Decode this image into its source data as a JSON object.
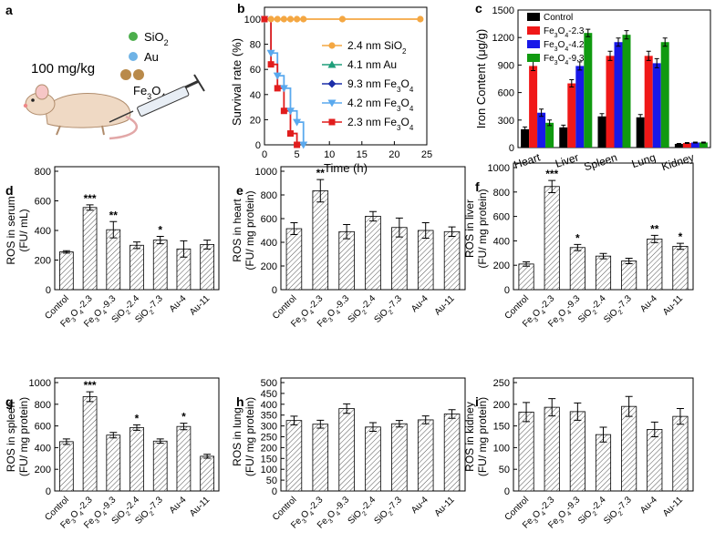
{
  "panels": {
    "a": {
      "letter": "a",
      "dose": "100 mg/kg",
      "legend": [
        {
          "label": "SiO",
          "sub": "2",
          "color": "#4cae4c"
        },
        {
          "label": "Au",
          "sub": "",
          "color": "#6fb3e6"
        },
        {
          "label": "Fe",
          "sub": "3",
          "label2": "O",
          "sub2": "4",
          "color": "#b98a4a"
        }
      ]
    }
  },
  "chart_data": [
    {
      "id": "b",
      "letter": "b",
      "type": "line",
      "xlabel": "Time (h)",
      "ylabel": "Survival rate (%)",
      "xlim": [
        0,
        25
      ],
      "ylim": [
        0,
        100
      ],
      "xticks": [
        0,
        5,
        10,
        15,
        20,
        25
      ],
      "yticks": [
        0,
        20,
        40,
        60,
        80,
        100
      ],
      "series": [
        {
          "name": "2.4 nm SiO2",
          "base": "2.4 nm SiO",
          "sub": "2",
          "color": "#f4a742",
          "marker": "circle",
          "x": [
            0,
            1,
            2,
            3,
            4,
            5,
            6,
            12,
            24
          ],
          "y": [
            100,
            100,
            100,
            100,
            100,
            100,
            100,
            100,
            100
          ]
        },
        {
          "name": "4.1 nm Au",
          "base": "4.1 nm Au",
          "color": "#1e9e7a",
          "marker": "triangle-up",
          "x": [],
          "y": []
        },
        {
          "name": "9.3 nm Fe3O4",
          "base": "9.3 nm Fe",
          "sub": "3",
          "base2": "O",
          "sub2": "4",
          "color": "#1c2ea8",
          "marker": "diamond",
          "x": [],
          "y": []
        },
        {
          "name": "4.2 nm Fe3O4",
          "base": "4.2 nm Fe",
          "sub": "3",
          "base2": "O",
          "sub2": "4",
          "color": "#5aa9ee",
          "marker": "triangle-down",
          "x": [
            0,
            1,
            2,
            3,
            4,
            5,
            6
          ],
          "y": [
            100,
            73,
            55,
            45,
            27,
            18,
            0
          ]
        },
        {
          "name": "2.3 nm Fe3O4",
          "base": "2.3 nm Fe",
          "sub": "3",
          "base2": "O",
          "sub2": "4",
          "color": "#e11d1d",
          "marker": "square",
          "x": [
            0,
            1,
            2,
            3,
            4,
            5
          ],
          "y": [
            100,
            64,
            45,
            27,
            9,
            0
          ]
        }
      ]
    },
    {
      "id": "c",
      "letter": "c",
      "type": "bar",
      "ylabel": "Iron Content (μg/g)",
      "ylim": [
        0,
        1500
      ],
      "yticks": [
        0,
        300,
        600,
        900,
        1200,
        1500
      ],
      "categories": [
        "Heart",
        "Liver",
        "Spleen",
        "Lung",
        "Kidney"
      ],
      "series": [
        {
          "name": "Control",
          "color": "#000000",
          "values": [
            200,
            220,
            340,
            330,
            40
          ],
          "errors": [
            25,
            25,
            30,
            30,
            5
          ]
        },
        {
          "name": "Fe3O4-2.3",
          "base": "Fe",
          "sub": "3",
          "base2": "O",
          "sub2": "4",
          "tail": "-2.3",
          "color": "#f01818",
          "values": [
            890,
            700,
            1000,
            1000,
            50
          ],
          "errors": [
            50,
            40,
            50,
            50,
            5
          ]
        },
        {
          "name": "Fe3O4-4.2",
          "base": "Fe",
          "sub": "3",
          "base2": "O",
          "sub2": "4",
          "tail": "-4.2",
          "color": "#1818e8",
          "values": [
            380,
            890,
            1150,
            920,
            55
          ],
          "errors": [
            40,
            45,
            45,
            50,
            5
          ]
        },
        {
          "name": "Fe3O4-9.3",
          "base": "Fe",
          "sub": "3",
          "base2": "O",
          "sub2": "4",
          "tail": "-9.3",
          "color": "#109a10",
          "values": [
            270,
            1250,
            1230,
            1150,
            55
          ],
          "errors": [
            30,
            40,
            45,
            45,
            5
          ]
        }
      ]
    },
    {
      "id": "d",
      "letter": "d",
      "type": "bar",
      "ylabel1": "ROS in serum",
      "ylabel2": "(FU/ mL)",
      "ylim": [
        0,
        800
      ],
      "yticks": [
        0,
        200,
        400,
        600,
        800
      ],
      "categories": [
        "Control",
        "Fe3O4-2.3",
        "Fe3O4-9.3",
        "SiO2-2.4",
        "SiO2-7.3",
        "Au-4",
        "Au-11"
      ],
      "values": [
        255,
        555,
        405,
        300,
        335,
        275,
        305
      ],
      "errors": [
        8,
        18,
        55,
        22,
        25,
        55,
        30
      ],
      "stars": [
        "",
        "***",
        "**",
        "",
        "*",
        "",
        ""
      ]
    },
    {
      "id": "e",
      "letter": "e",
      "type": "bar",
      "ylabel1": "ROS in heart",
      "ylabel2": "(FU/ mg protein)",
      "ylim": [
        0,
        1000
      ],
      "yticks": [
        0,
        200,
        400,
        600,
        800,
        1000
      ],
      "categories": [
        "Control",
        "Fe3O4-2.3",
        "Fe3O4-9.3",
        "SiO2-2.4",
        "SiO2-7.3",
        "Au-4",
        "Au-11"
      ],
      "values": [
        515,
        835,
        490,
        620,
        525,
        500,
        490
      ],
      "errors": [
        50,
        95,
        60,
        40,
        80,
        65,
        40
      ],
      "stars": [
        "",
        "**",
        "",
        "",
        "",
        "",
        ""
      ]
    },
    {
      "id": "f",
      "letter": "f",
      "type": "bar",
      "ylabel1": "ROS in liver",
      "ylabel2": "(FU/ mg protein)",
      "ylim": [
        0,
        1000
      ],
      "yticks": [
        0,
        200,
        400,
        600,
        800,
        1000
      ],
      "categories": [
        "Control",
        "Fe3O4-2.3",
        "Fe3O4-9.3",
        "SiO2-2.4",
        "SiO2-7.3",
        "Au-4",
        "Au-11"
      ],
      "values": [
        210,
        845,
        345,
        275,
        235,
        415,
        355
      ],
      "errors": [
        18,
        50,
        25,
        22,
        22,
        30,
        25
      ],
      "stars": [
        "",
        "***",
        "*",
        "",
        "",
        "**",
        "*"
      ]
    },
    {
      "id": "g",
      "letter": "g",
      "type": "bar",
      "ylabel1": "ROS in spleen",
      "ylabel2": "(FU/ mg protein)",
      "ylim": [
        0,
        1000
      ],
      "yticks": [
        0,
        200,
        400,
        600,
        800,
        1000
      ],
      "categories": [
        "Control",
        "Fe3O4-2.3",
        "Fe3O4-9.3",
        "SiO2-2.4",
        "SiO2-7.3",
        "Au-4",
        "Au-11"
      ],
      "values": [
        455,
        870,
        515,
        585,
        460,
        595,
        320
      ],
      "errors": [
        25,
        45,
        25,
        25,
        20,
        30,
        18
      ],
      "stars": [
        "",
        "***",
        "",
        "*",
        "",
        "*",
        ""
      ]
    },
    {
      "id": "h",
      "letter": "h",
      "type": "bar",
      "ylabel1": "ROS in lung",
      "ylabel2": "(FU/ mg protein)",
      "ylim": [
        0,
        500
      ],
      "yticks": [
        0,
        50,
        100,
        150,
        200,
        250,
        300,
        350,
        400,
        450,
        500
      ],
      "categories": [
        "Control",
        "Fe3O4-2.3",
        "Fe3O4-9.3",
        "SiO2-2.4",
        "SiO2-7.3",
        "Au-4",
        "Au-11"
      ],
      "values": [
        325,
        308,
        380,
        295,
        310,
        328,
        355
      ],
      "errors": [
        20,
        18,
        22,
        20,
        15,
        18,
        20
      ],
      "stars": [
        "",
        "",
        "",
        "",
        "",
        "",
        ""
      ]
    },
    {
      "id": "i",
      "letter": "i",
      "type": "bar",
      "ylabel1": "ROS in kidney",
      "ylabel2": "(FU/ mg protein)",
      "ylim": [
        0,
        250
      ],
      "yticks": [
        0,
        50,
        100,
        150,
        200,
        250
      ],
      "categories": [
        "Control",
        "Fe3O4-2.3",
        "Fe3O4-9.3",
        "SiO2-2.4",
        "SiO2-7.3",
        "Au-4",
        "Au-11"
      ],
      "values": [
        182,
        193,
        183,
        130,
        195,
        142,
        172
      ],
      "errors": [
        22,
        20,
        20,
        17,
        23,
        17,
        18
      ],
      "stars": [
        "",
        "",
        "",
        "",
        "",
        "",
        ""
      ]
    }
  ]
}
